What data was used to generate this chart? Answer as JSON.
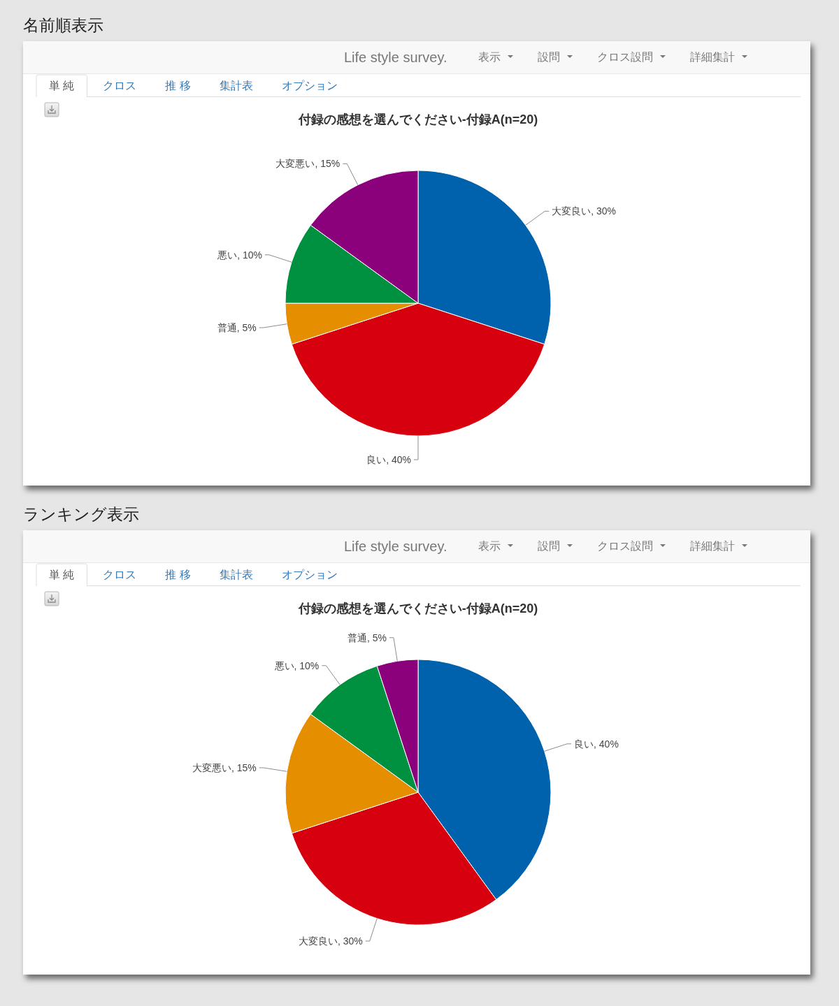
{
  "chart_data": [
    {
      "type": "pie",
      "title": "付録の感想を選んでください-付録A(n=20)",
      "categories": [
        "大変良い",
        "良い",
        "普通",
        "悪い",
        "大変悪い"
      ],
      "values": [
        30,
        40,
        5,
        10,
        15
      ],
      "value_labels": [
        "30%",
        "40%",
        "5%",
        "10%",
        "15%"
      ],
      "colors": [
        "#0062ad",
        "#d7000f",
        "#e48e00",
        "#009140",
        "#8b007b"
      ],
      "annotations": [
        "名前順表示",
        "Life style survey.",
        "表示",
        "設問",
        "クロス設問",
        "詳細集計",
        "単 純",
        "クロス",
        "推 移",
        "集計表",
        "オプション"
      ]
    },
    {
      "type": "pie",
      "title": "付録の感想を選んでください-付録A(n=20)",
      "categories": [
        "良い",
        "大変良い",
        "大変悪い",
        "悪い",
        "普通"
      ],
      "values": [
        40,
        30,
        15,
        10,
        5
      ],
      "value_labels": [
        "40%",
        "30%",
        "15%",
        "10%",
        "5%"
      ],
      "colors": [
        "#0062ad",
        "#d7000f",
        "#e48e00",
        "#009140",
        "#8b007b"
      ],
      "annotations": [
        "ランキング表示",
        "Life style survey.",
        "表示",
        "設問",
        "クロス設問",
        "詳細集計",
        "単 純",
        "クロス",
        "推 移",
        "集計表",
        "オプション"
      ]
    }
  ]
}
